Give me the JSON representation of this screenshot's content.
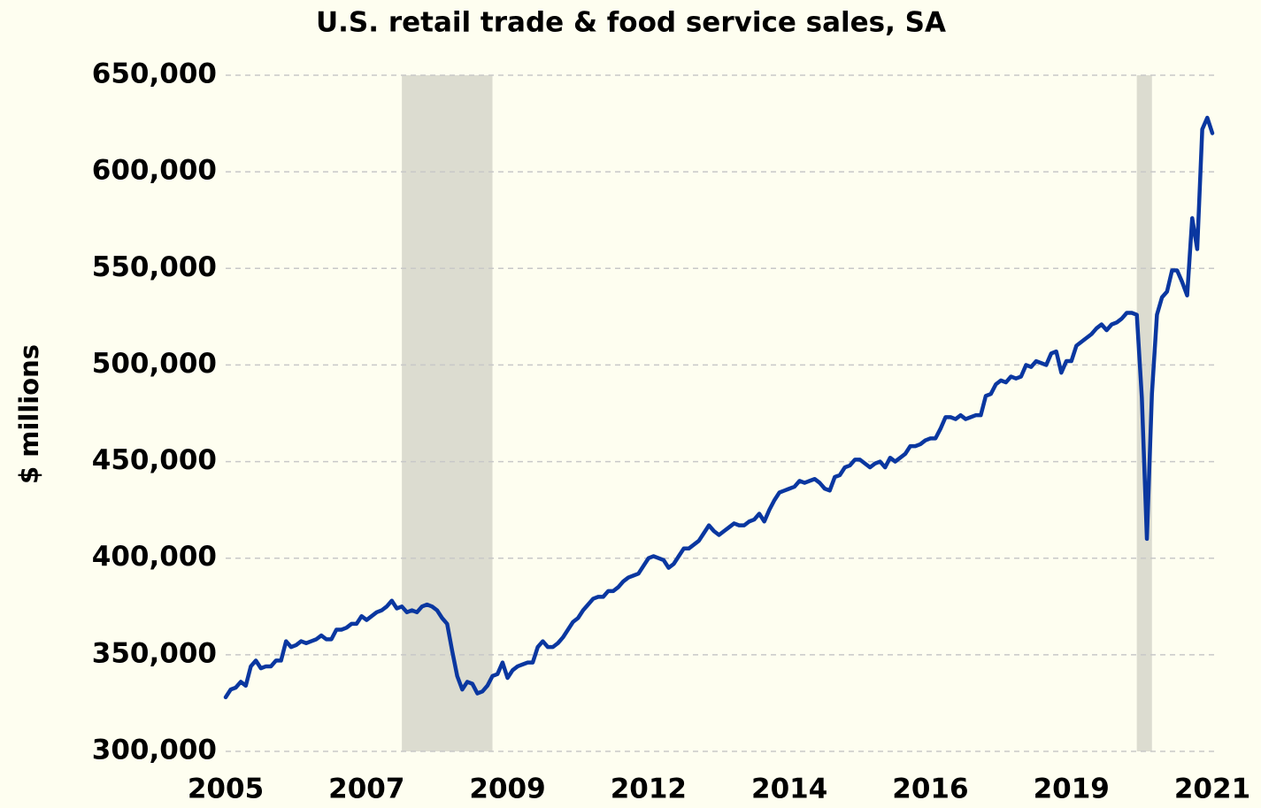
{
  "chart_data": {
    "type": "line",
    "title": "U.S. retail trade & food service sales, SA",
    "y_label": "$ millions",
    "categories": [
      "2005",
      null,
      null,
      null,
      null,
      null,
      null,
      null,
      null,
      null,
      null,
      null,
      null,
      null,
      null,
      null,
      null,
      null,
      null,
      null,
      null,
      null,
      null,
      null,
      null,
      null,
      null,
      null,
      "2007",
      null,
      null,
      null,
      null,
      null,
      null,
      null,
      null,
      null,
      null,
      null,
      null,
      null,
      null,
      null,
      null,
      null,
      null,
      null,
      null,
      null,
      null,
      null,
      null,
      null,
      null,
      null,
      "2009",
      null,
      null,
      null,
      null,
      null,
      null,
      null,
      null,
      null,
      null,
      null,
      null,
      null,
      null,
      null,
      null,
      null,
      null,
      null,
      null,
      null,
      null,
      null,
      null,
      null,
      null,
      null,
      "2012",
      null,
      null,
      null,
      null,
      null,
      null,
      null,
      null,
      null,
      null,
      null,
      null,
      null,
      null,
      null,
      null,
      null,
      null,
      null,
      null,
      null,
      null,
      null,
      null,
      null,
      null,
      null,
      "2014",
      null,
      null,
      null,
      null,
      null,
      null,
      null,
      null,
      null,
      null,
      null,
      null,
      null,
      null,
      null,
      null,
      null,
      null,
      null,
      null,
      null,
      null,
      null,
      null,
      null,
      null,
      null,
      "2016",
      null,
      null,
      null,
      null,
      null,
      null,
      null,
      null,
      null,
      null,
      null,
      null,
      null,
      null,
      null,
      null,
      null,
      null,
      null,
      null,
      null,
      null,
      null,
      null,
      null,
      null,
      null,
      "2019",
      null,
      null,
      null,
      null,
      null,
      null,
      null,
      null,
      null,
      null,
      null,
      null,
      null,
      null,
      null,
      null,
      null,
      null,
      null,
      null,
      null,
      null,
      null,
      null,
      null,
      null,
      null,
      "2021"
    ],
    "series": [
      {
        "name": "Retail trade & food service sales",
        "color": "#0a37a0",
        "values": [
          328000,
          332000,
          333000,
          336000,
          334000,
          344000,
          347000,
          343000,
          344000,
          344000,
          347000,
          347000,
          357000,
          354000,
          355000,
          357000,
          356000,
          357000,
          358000,
          360000,
          358000,
          358000,
          363000,
          363000,
          364000,
          366000,
          366000,
          370000,
          368000,
          370000,
          372000,
          373000,
          375000,
          378000,
          374000,
          375000,
          372000,
          373000,
          372000,
          375000,
          376000,
          375000,
          373000,
          369000,
          366000,
          352000,
          339000,
          332000,
          336000,
          335000,
          330000,
          331000,
          334000,
          339000,
          340000,
          346000,
          338000,
          342000,
          344000,
          345000,
          346000,
          346000,
          354000,
          357000,
          354000,
          354000,
          356000,
          359000,
          363000,
          367000,
          369000,
          373000,
          376000,
          379000,
          380000,
          380000,
          383000,
          383000,
          385000,
          388000,
          390000,
          391000,
          392000,
          396000,
          400000,
          401000,
          400000,
          399000,
          395000,
          397000,
          401000,
          405000,
          405000,
          407000,
          409000,
          413000,
          417000,
          414000,
          412000,
          414000,
          416000,
          418000,
          417000,
          417000,
          419000,
          420000,
          423000,
          419000,
          425000,
          430000,
          434000,
          435000,
          436000,
          437000,
          440000,
          439000,
          440000,
          441000,
          439000,
          436000,
          435000,
          442000,
          443000,
          447000,
          448000,
          451000,
          451000,
          449000,
          447000,
          449000,
          450000,
          447000,
          452000,
          450000,
          452000,
          454000,
          458000,
          458000,
          459000,
          461000,
          462000,
          462000,
          467000,
          473000,
          473000,
          472000,
          474000,
          472000,
          473000,
          474000,
          474000,
          484000,
          485000,
          490000,
          492000,
          491000,
          494000,
          493000,
          494000,
          500000,
          499000,
          502000,
          501000,
          500000,
          506000,
          507000,
          496000,
          502000,
          502000,
          510000,
          512000,
          514000,
          516000,
          519000,
          521000,
          518000,
          521000,
          522000,
          524000,
          527000,
          527000,
          526000,
          483000,
          410000,
          485000,
          526000,
          535000,
          538000,
          549000,
          549000,
          543000,
          536000,
          576000,
          560000,
          622000,
          628000,
          620000
        ]
      }
    ],
    "shaded": [
      {
        "start": 35,
        "end": 53,
        "color": "#dcdcd0"
      },
      {
        "start": 181,
        "end": 184,
        "color": "#dcdcd0"
      }
    ],
    "ylim": [
      300000,
      650000
    ],
    "yticks": [
      {
        "value": 300000,
        "label": "300,000"
      },
      {
        "value": 350000,
        "label": "350,000"
      },
      {
        "value": 400000,
        "label": "400,000"
      },
      {
        "value": 450000,
        "label": "450,000"
      },
      {
        "value": 500000,
        "label": "500,000"
      },
      {
        "value": 550000,
        "label": "550,000"
      },
      {
        "value": 600000,
        "label": "600,000"
      },
      {
        "value": 650000,
        "label": "650,000"
      }
    ],
    "grid": true
  }
}
